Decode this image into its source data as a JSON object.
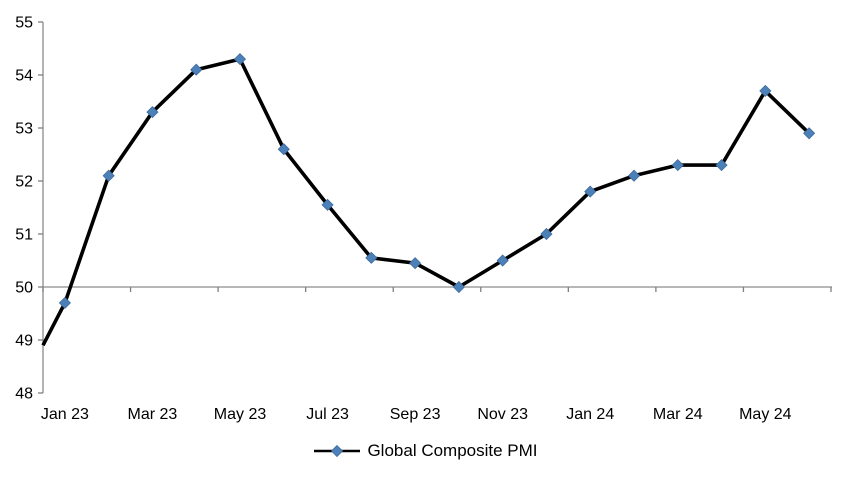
{
  "chart_data": {
    "type": "line",
    "title": "",
    "x": [
      "Jan 23",
      "Feb 23",
      "Mar 23",
      "Apr 23",
      "May 23",
      "Jun 23",
      "Jul 23",
      "Aug 23",
      "Sep 23",
      "Oct 23",
      "Nov 23",
      "Dec 23",
      "Jan 24",
      "Feb 24",
      "Mar 24",
      "Apr 24",
      "May 24",
      "Jun 24"
    ],
    "series": [
      {
        "name": "Global Composite PMI",
        "values": [
          49.7,
          52.1,
          53.3,
          54.1,
          54.3,
          52.6,
          51.55,
          50.55,
          50.45,
          50.0,
          50.5,
          51.0,
          51.8,
          52.1,
          52.3,
          52.3,
          53.7,
          52.9
        ]
      }
    ],
    "edge_entry_value": 48.9,
    "x_tick_labels": [
      "Jan 23",
      "Mar 23",
      "May 23",
      "Jul 23",
      "Sep 23",
      "Nov 23",
      "Jan 24",
      "Mar 24",
      "May 24"
    ],
    "y_ticks": [
      55,
      54,
      53,
      52,
      51,
      50,
      49,
      48
    ],
    "ylim": [
      48,
      55
    ],
    "x_axis_cross_value": 50,
    "grid": "off",
    "legend": {
      "label": "Global Composite PMI",
      "position": "bottom-center"
    }
  },
  "colors": {
    "series_line": "#000000",
    "marker_fill": "#4C80B8",
    "marker_edge": "#3D6A9B",
    "axis_line": "#8C8C8C",
    "tick": "#7F7F7F",
    "text": "#000000",
    "background": "#FFFFFF"
  }
}
